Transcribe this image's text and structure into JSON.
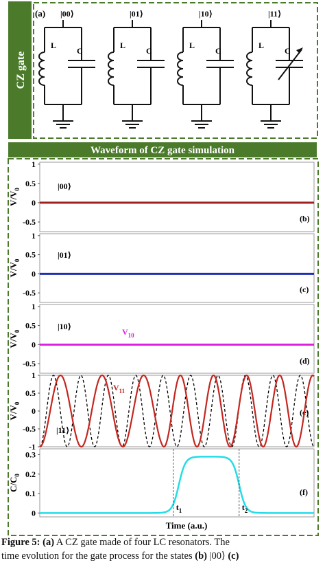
{
  "panel_a": {
    "side_label": "CZ gate",
    "tag": "(a)",
    "circuits": [
      {
        "state": "|00⟩",
        "inductor": "L",
        "capacitor": "C"
      },
      {
        "state": "|01⟩",
        "inductor": "L",
        "capacitor": "C"
      },
      {
        "state": "|10⟩",
        "inductor": "L",
        "capacitor": "C"
      },
      {
        "state": "|11⟩",
        "inductor": "L",
        "capacitor": "C",
        "variable": true
      }
    ]
  },
  "banner": "Waveform of CZ gate simulation",
  "colors": {
    "green": "#4a7a2a",
    "red": "#c4261f",
    "blue": "#1f2fb5",
    "magenta": "#e020e0",
    "cyan": "#22dde8",
    "darkred": "#a02020"
  },
  "chart_data": [
    {
      "type": "line",
      "tag": "(b)",
      "ylabel": "V/V",
      "ylabel_sub": "0",
      "state": "|00⟩",
      "yticks": [
        "1",
        "0.5",
        "0",
        "-0.5"
      ],
      "ylim": [
        -0.75,
        1.05
      ],
      "series": [
        {
          "constant": 0,
          "color": "#a02020"
        }
      ]
    },
    {
      "type": "line",
      "tag": "(c)",
      "ylabel": "V/V",
      "ylabel_sub": "0",
      "state": "|01⟩",
      "yticks": [
        "1",
        "0.5",
        "0",
        "-0.5"
      ],
      "ylim": [
        -0.75,
        1.05
      ],
      "series": [
        {
          "constant": 0,
          "color": "#1f2fb5"
        }
      ]
    },
    {
      "type": "line",
      "tag": "(d)",
      "ylabel": "V/V",
      "ylabel_sub": "0",
      "state": "|10⟩",
      "yticks": [
        "1",
        "0.5",
        "0",
        "-0.5"
      ],
      "ylim": [
        -0.75,
        1.05
      ],
      "series": [
        {
          "name": "V",
          "name_sub": "10",
          "constant": 0,
          "color": "#e020e0"
        }
      ]
    },
    {
      "type": "line",
      "tag": "(e)",
      "ylabel": "V/V",
      "ylabel_sub": "0",
      "state": "|11⟩",
      "yticks": [
        "1",
        "0.5",
        "0",
        "-0.5",
        "-1"
      ],
      "ylim": [
        -1,
        1
      ],
      "series": [
        {
          "name": "V",
          "name_sub": "11",
          "color": "#c4261f",
          "cycles_before": 6.6,
          "cycles_after": 4.6,
          "phase": -1.5708
        },
        {
          "dashed": true,
          "color": "#000",
          "cycles": 10,
          "phase": -1.5708
        }
      ]
    },
    {
      "type": "line",
      "tag": "(f)",
      "ylabel": "C/C",
      "ylabel_sub": "0",
      "yticks": [
        "0.3",
        "0.2",
        "0.1",
        "0"
      ],
      "ylim": [
        -0.02,
        0.33
      ],
      "xlabel": "Time (a.u.)",
      "markers": [
        {
          "t": "t",
          "t_sub": "1",
          "x": 0.487
        },
        {
          "t": "t",
          "t_sub": "2",
          "x": 0.727
        }
      ],
      "series": [
        {
          "color": "#22dde8",
          "low": 0,
          "high": 0.29,
          "rise": 0.487,
          "fall": 0.727
        }
      ]
    }
  ],
  "caption": {
    "line1_a": "Figure 5: ",
    "line1_b": "(a)",
    "line1_c": " A CZ gate made of four LC resonators. The",
    "line2_a": "time evolution for the gate process for the states ",
    "line2_b": "(b)",
    "line2_c": " |00⟩ ",
    "line2_d": "(c)"
  }
}
